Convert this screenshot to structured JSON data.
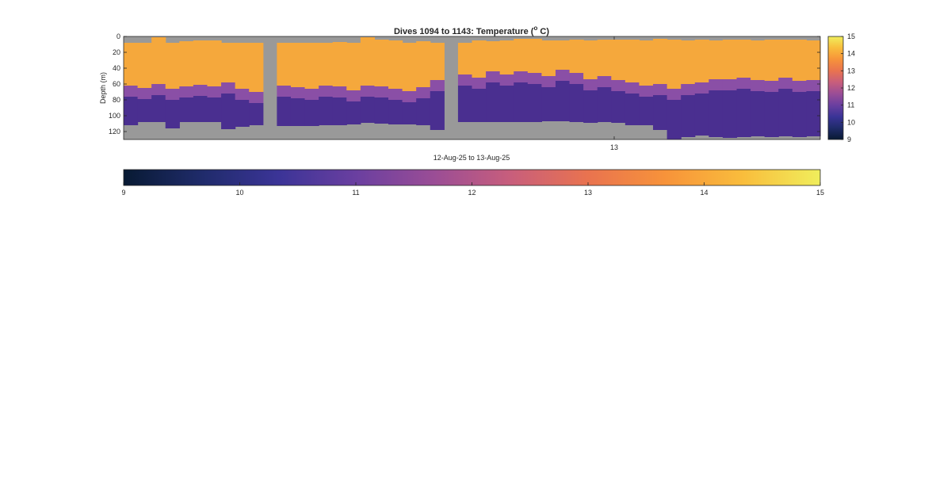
{
  "chart_data": [
    {
      "type": "heatmap",
      "title_main": "Dives 1094 to 1143: Temperature (",
      "title_sup": "o",
      "title_end": " C)",
      "xlabel": "12-Aug-25 to 13-Aug-25",
      "ylabel": "Depth (m)",
      "x_tick_labels": [
        "13"
      ],
      "y_tick_labels": [
        "0",
        "20",
        "40",
        "60",
        "80",
        "100",
        "120"
      ],
      "ylim": [
        0,
        130
      ],
      "dives": [
        1094,
        1143
      ],
      "columns": [
        {
          "surface": 8,
          "thermocline": 62,
          "bottom": 112
        },
        {
          "surface": 8,
          "thermocline": 65,
          "bottom": 108
        },
        {
          "surface": 1,
          "thermocline": 60,
          "bottom": 108
        },
        {
          "surface": 8,
          "thermocline": 66,
          "bottom": 116
        },
        {
          "surface": 6,
          "thermocline": 63,
          "bottom": 108
        },
        {
          "surface": 5,
          "thermocline": 61,
          "bottom": 108
        },
        {
          "surface": 5,
          "thermocline": 63,
          "bottom": 108
        },
        {
          "surface": 8,
          "thermocline": 58,
          "bottom": 117
        },
        {
          "surface": 8,
          "thermocline": 66,
          "bottom": 114
        },
        {
          "surface": 8,
          "thermocline": 70,
          "bottom": 112
        },
        {
          "surface": null,
          "thermocline": null,
          "bottom": null
        },
        {
          "surface": 8,
          "thermocline": 62,
          "bottom": 113
        },
        {
          "surface": 8,
          "thermocline": 64,
          "bottom": 113
        },
        {
          "surface": 8,
          "thermocline": 66,
          "bottom": 113
        },
        {
          "surface": 8,
          "thermocline": 62,
          "bottom": 112
        },
        {
          "surface": 7,
          "thermocline": 63,
          "bottom": 112
        },
        {
          "surface": 8,
          "thermocline": 68,
          "bottom": 111
        },
        {
          "surface": 1,
          "thermocline": 62,
          "bottom": 109
        },
        {
          "surface": 4,
          "thermocline": 63,
          "bottom": 110
        },
        {
          "surface": 5,
          "thermocline": 66,
          "bottom": 111
        },
        {
          "surface": 8,
          "thermocline": 69,
          "bottom": 111
        },
        {
          "surface": 6,
          "thermocline": 64,
          "bottom": 112
        },
        {
          "surface": 8,
          "thermocline": 55,
          "bottom": 118
        },
        {
          "surface": null,
          "thermocline": null,
          "bottom": null
        },
        {
          "surface": 8,
          "thermocline": 48,
          "bottom": 108
        },
        {
          "surface": 5,
          "thermocline": 52,
          "bottom": 108
        },
        {
          "surface": 6,
          "thermocline": 44,
          "bottom": 108
        },
        {
          "surface": 5,
          "thermocline": 48,
          "bottom": 108
        },
        {
          "surface": 3,
          "thermocline": 44,
          "bottom": 108
        },
        {
          "surface": 3,
          "thermocline": 46,
          "bottom": 108
        },
        {
          "surface": 5,
          "thermocline": 50,
          "bottom": 107
        },
        {
          "surface": 5,
          "thermocline": 42,
          "bottom": 107
        },
        {
          "surface": 4,
          "thermocline": 46,
          "bottom": 108
        },
        {
          "surface": 5,
          "thermocline": 54,
          "bottom": 109
        },
        {
          "surface": 4,
          "thermocline": 50,
          "bottom": 108
        },
        {
          "surface": 4,
          "thermocline": 55,
          "bottom": 109
        },
        {
          "surface": 4,
          "thermocline": 58,
          "bottom": 112
        },
        {
          "surface": 5,
          "thermocline": 62,
          "bottom": 112
        },
        {
          "surface": 3,
          "thermocline": 60,
          "bottom": 118
        },
        {
          "surface": 4,
          "thermocline": 66,
          "bottom": 130
        },
        {
          "surface": 5,
          "thermocline": 60,
          "bottom": 127
        },
        {
          "surface": 4,
          "thermocline": 58,
          "bottom": 125
        },
        {
          "surface": 5,
          "thermocline": 54,
          "bottom": 127
        },
        {
          "surface": 4,
          "thermocline": 54,
          "bottom": 128
        },
        {
          "surface": 4,
          "thermocline": 52,
          "bottom": 127
        },
        {
          "surface": 5,
          "thermocline": 55,
          "bottom": 126
        },
        {
          "surface": 4,
          "thermocline": 56,
          "bottom": 127
        },
        {
          "surface": 4,
          "thermocline": 52,
          "bottom": 126
        },
        {
          "surface": 4,
          "thermocline": 56,
          "bottom": 127
        },
        {
          "surface": 5,
          "thermocline": 55,
          "bottom": 126
        }
      ],
      "colors": {
        "no_data": "#999999",
        "warm": "#f5a83c",
        "mid": "#8a4fa6",
        "cold": "#4a2f90",
        "axis": "#262626"
      }
    },
    {
      "type": "colorbar",
      "range": [
        9,
        15
      ],
      "tick_labels": [
        "9",
        "10",
        "11",
        "12",
        "13",
        "14",
        "15"
      ],
      "stops": [
        "#081a33",
        "#1f2b6a",
        "#3b3497",
        "#6a3fa0",
        "#9a4d96",
        "#c85e7c",
        "#e9734f",
        "#f7933a",
        "#f9bd3c",
        "#f0ee5c"
      ]
    }
  ]
}
